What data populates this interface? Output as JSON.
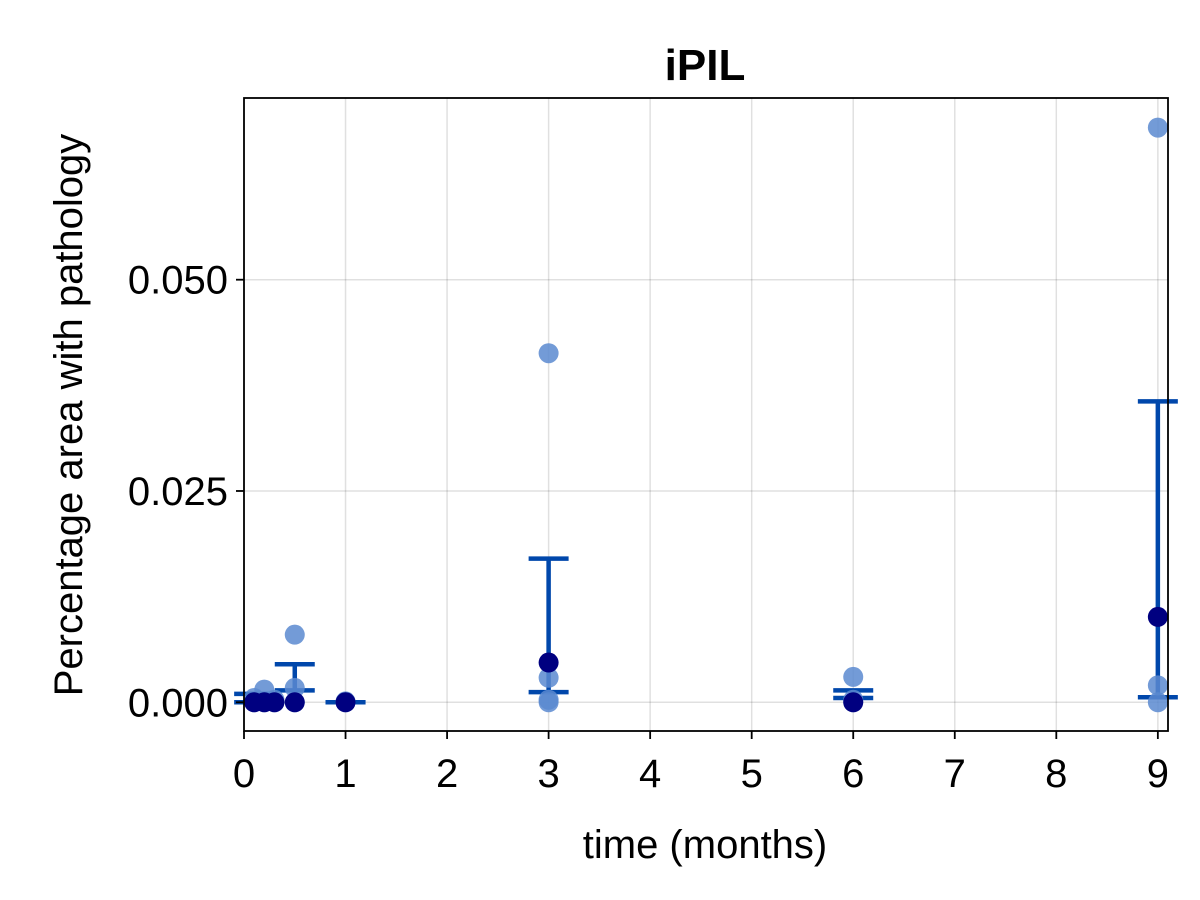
{
  "chart_data": {
    "type": "scatter",
    "title": "iPIL",
    "xlabel": "time (months)",
    "ylabel": "Percentage area with pathology",
    "xlim": [
      0,
      9.1
    ],
    "ylim": [
      -0.0034,
      0.0715
    ],
    "x_ticks": [
      0,
      1,
      2,
      3,
      4,
      5,
      6,
      7,
      8,
      9
    ],
    "x_tick_labels": [
      "0",
      "1",
      "2",
      "3",
      "4",
      "5",
      "6",
      "7",
      "8",
      "9"
    ],
    "y_ticks": [
      0.0,
      0.025,
      0.05
    ],
    "y_tick_labels": [
      "0.000",
      "0.025",
      "0.050"
    ],
    "grid": true,
    "colors": {
      "points": "#5B8AD0",
      "median_points": "#000080",
      "error_bars": "#0047AB"
    },
    "series": [
      {
        "points": [
          {
            "x": 0.1,
            "y": 0.0
          },
          {
            "x": 0.1,
            "y": 0.0005
          },
          {
            "x": 0.2,
            "y": 0.0
          },
          {
            "x": 0.2,
            "y": 0.0015
          },
          {
            "x": 0.3,
            "y": 0.0
          },
          {
            "x": 0.3,
            "y": 0.0003
          },
          {
            "x": 0.5,
            "y": 0.0
          },
          {
            "x": 0.5,
            "y": 0.0017
          },
          {
            "x": 0.5,
            "y": 0.008
          },
          {
            "x": 1.0,
            "y": 0.0
          },
          {
            "x": 1.0,
            "y": 0.0001
          },
          {
            "x": 3.0,
            "y": 0.0
          },
          {
            "x": 3.0,
            "y": 0.0003
          },
          {
            "x": 3.0,
            "y": 0.0029
          },
          {
            "x": 3.0,
            "y": 0.0413
          },
          {
            "x": 6.0,
            "y": 0.0
          },
          {
            "x": 6.0,
            "y": 0.0003
          },
          {
            "x": 6.0,
            "y": 0.003
          },
          {
            "x": 9.0,
            "y": 0.0
          },
          {
            "x": 9.0,
            "y": 0.002
          },
          {
            "x": 9.0,
            "y": 0.068
          }
        ]
      },
      {
        "points": [
          {
            "x": 0.1,
            "y": 0.0
          },
          {
            "x": 0.2,
            "y": 0.0
          },
          {
            "x": 0.3,
            "y": 0.0
          },
          {
            "x": 0.5,
            "y": 0.0
          },
          {
            "x": 1.0,
            "y": 0.0
          },
          {
            "x": 3.0,
            "y": 0.0047
          },
          {
            "x": 6.0,
            "y": 0.0
          },
          {
            "x": 9.0,
            "y": 0.0101
          }
        ]
      }
    ],
    "error_bars": [
      {
        "x": 0.1,
        "low": 0.0,
        "high": 0.001
      },
      {
        "x": 0.5,
        "low": 0.0014,
        "high": 0.0045
      },
      {
        "x": 1.0,
        "low": 0.0,
        "high": 0.0
      },
      {
        "x": 3.0,
        "low": 0.0012,
        "high": 0.017
      },
      {
        "x": 6.0,
        "low": 0.0005,
        "high": 0.0014
      },
      {
        "x": 9.0,
        "low": 0.0006,
        "high": 0.0356
      }
    ]
  }
}
